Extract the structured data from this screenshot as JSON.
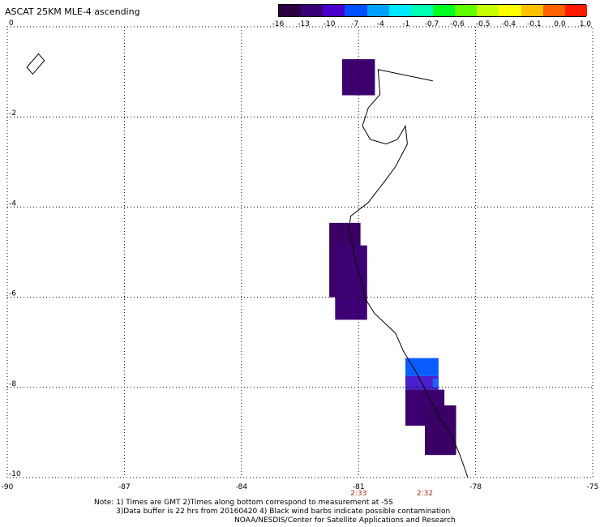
{
  "title": "ASCAT 25KM MLE-4 ascending",
  "colorbar": {
    "colors": [
      "#2a0040",
      "#3a0075",
      "#4a00c8",
      "#0050ff",
      "#00a0ff",
      "#00e8ff",
      "#00ffb0",
      "#00ff20",
      "#60ff00",
      "#c8ff00",
      "#ffff00",
      "#ffc000",
      "#ff6000",
      "#ff1a00"
    ],
    "labels": [
      "-16",
      "-13",
      "-10",
      "-7",
      "-4",
      "-1",
      "-0.7",
      "-0.6",
      "-0.5",
      "-0.4",
      "-0.1",
      "0.0",
      "1.0"
    ]
  },
  "axes": {
    "lon_ticks": [
      -90,
      -87,
      -84,
      -81,
      -78,
      -75
    ],
    "lat_ticks": [
      0,
      -2,
      -4,
      -6,
      -8,
      -10
    ],
    "lon_labels": [
      "-90",
      "-87",
      "-84",
      "-81",
      "-78",
      "-75"
    ],
    "lat_labels": [
      "0",
      "-2",
      "-4",
      "-6",
      "-8",
      "-10"
    ],
    "lon_range": [
      -90,
      -75
    ],
    "lat_range": [
      0,
      -10
    ],
    "grid": "dotted"
  },
  "pass_times": [
    {
      "label": "2:33",
      "lon": -81.0
    },
    {
      "label": "2:32",
      "lon": -79.3
    }
  ],
  "swath_cells": [
    {
      "lon0": -81.42,
      "lon1": -80.58,
      "lat0": -0.72,
      "lat1": -1.52,
      "color": "#3d006e"
    },
    {
      "lon0": -81.75,
      "lon1": -80.95,
      "lat0": -4.35,
      "lat1": -6.0,
      "color": "#3a0065"
    },
    {
      "lon0": -81.6,
      "lon1": -80.78,
      "lat0": -4.85,
      "lat1": -6.5,
      "color": "#3e0075"
    },
    {
      "lon0": -79.8,
      "lon1": -78.95,
      "lat0": -7.35,
      "lat1": -7.75,
      "color": "#0a5cff"
    },
    {
      "lon0": -79.8,
      "lon1": -78.95,
      "lat0": -7.75,
      "lat1": -8.05,
      "color": "#4a20cc"
    },
    {
      "lon0": -79.8,
      "lon1": -78.8,
      "lat0": -8.05,
      "lat1": -8.85,
      "color": "#3d0070"
    },
    {
      "lon0": -79.3,
      "lon1": -78.5,
      "lat0": -8.4,
      "lat1": -9.5,
      "color": "#3a0065"
    },
    {
      "lon0": -79.1,
      "lon1": -78.95,
      "lat0": -7.8,
      "lat1": -8.0,
      "color": "#2060ff"
    }
  ],
  "coastline": [
    [
      -79.1,
      -1.2
    ],
    [
      -80.5,
      -0.95
    ],
    [
      -80.45,
      -1.5
    ],
    [
      -80.75,
      -1.8
    ],
    [
      -80.9,
      -2.2
    ],
    [
      -80.7,
      -2.5
    ],
    [
      -80.3,
      -2.6
    ],
    [
      -80.0,
      -2.5
    ],
    [
      -79.8,
      -2.2
    ],
    [
      -79.75,
      -2.6
    ],
    [
      -80.05,
      -3.1
    ],
    [
      -80.35,
      -3.45
    ],
    [
      -80.75,
      -3.9
    ],
    [
      -81.2,
      -4.2
    ],
    [
      -81.25,
      -4.5
    ],
    [
      -81.15,
      -4.9
    ],
    [
      -81.05,
      -5.3
    ],
    [
      -80.9,
      -5.7
    ],
    [
      -80.85,
      -6.0
    ],
    [
      -80.6,
      -6.35
    ],
    [
      -80.05,
      -6.8
    ],
    [
      -79.85,
      -7.2
    ],
    [
      -79.5,
      -7.7
    ],
    [
      -79.2,
      -8.2
    ],
    [
      -78.9,
      -8.7
    ],
    [
      -78.6,
      -9.1
    ],
    [
      -78.4,
      -9.5
    ],
    [
      -78.2,
      -10.0
    ]
  ],
  "island": [
    [
      -89.5,
      -0.9
    ],
    [
      -89.2,
      -0.6
    ],
    [
      -89.05,
      -0.75
    ],
    [
      -89.35,
      -1.05
    ],
    [
      -89.5,
      -0.9
    ]
  ],
  "notes": [
    "Note: 1) Times are GMT 2)Times along bottom correspond to measurement at -5S",
    "3)Data buffer is 22 hrs from 20160420 4) Black wind barbs indicate possible contamination",
    "NOAA/NESDIS/Center for Satellite Applications and Research"
  ]
}
